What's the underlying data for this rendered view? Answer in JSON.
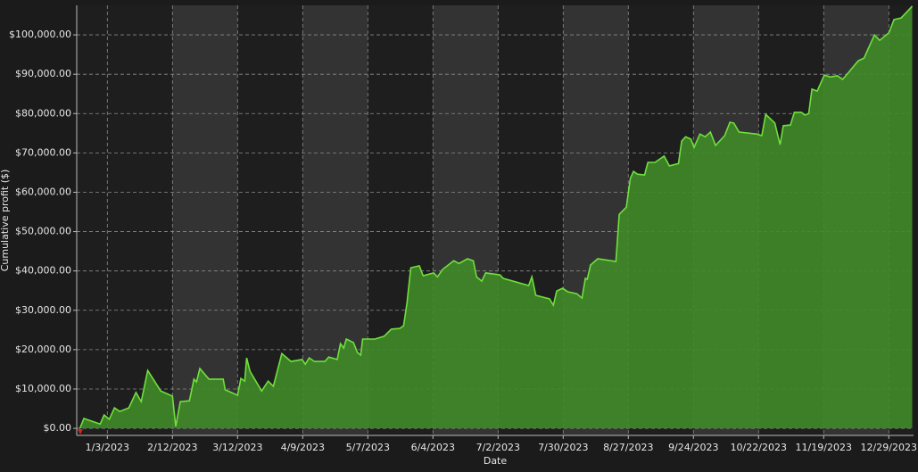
{
  "chart_data": {
    "type": "area",
    "xlabel": "Date",
    "ylabel": "Cumulative profit ($)",
    "x": [
      -0.42,
      -0.36,
      -0.11,
      -0.05,
      0.03,
      0.11,
      0.19,
      0.33,
      0.44,
      0.52,
      0.62,
      0.82,
      1.0,
      1.05,
      1.12,
      1.26,
      1.33,
      1.37,
      1.42,
      1.56,
      1.78,
      1.81,
      2.0,
      2.05,
      2.11,
      2.14,
      2.19,
      2.37,
      2.47,
      2.55,
      2.68,
      2.82,
      2.99,
      3.04,
      3.1,
      3.18,
      3.34,
      3.4,
      3.53,
      3.58,
      3.63,
      3.67,
      3.78,
      3.84,
      3.89,
      3.92,
      4.11,
      4.25,
      4.36,
      4.49,
      4.55,
      4.6,
      4.66,
      4.79,
      4.85,
      5.01,
      5.07,
      5.15,
      5.32,
      5.4,
      5.53,
      5.62,
      5.67,
      5.75,
      5.81,
      6.03,
      6.08,
      6.47,
      6.52,
      6.58,
      6.79,
      6.85,
      6.9,
      6.99,
      7.07,
      7.21,
      7.29,
      7.34,
      7.37,
      7.42,
      7.53,
      7.81,
      7.86,
      7.97,
      8.03,
      8.08,
      8.14,
      8.25,
      8.3,
      8.41,
      8.55,
      8.63,
      8.77,
      8.82,
      8.88,
      8.96,
      9.01,
      9.1,
      9.18,
      9.26,
      9.34,
      9.48,
      9.56,
      9.62,
      9.7,
      9.97,
      10.05,
      10.11,
      10.25,
      10.33,
      10.38,
      10.49,
      10.55,
      10.66,
      10.71,
      10.77,
      10.82,
      10.9,
      11.01,
      11.1,
      11.21,
      11.29,
      11.34,
      11.42,
      11.53,
      11.62,
      11.7,
      11.78,
      11.86,
      12.0,
      12.08,
      12.19,
      12.27,
      12.36
    ],
    "series": [
      {
        "name": "Cumulative profit",
        "color": "#6fe03c",
        "fill": "#3f8a28",
        "values": [
          0,
          2500,
          1100,
          3400,
          2300,
          5200,
          4300,
          5200,
          9100,
          6800,
          14700,
          9500,
          8200,
          500,
          6800,
          7000,
          12500,
          11800,
          15200,
          12500,
          12500,
          9800,
          8400,
          12700,
          12000,
          17900,
          14500,
          9500,
          12000,
          10700,
          19000,
          17000,
          17500,
          16300,
          17900,
          17000,
          17000,
          18100,
          17500,
          21500,
          20400,
          22700,
          21800,
          19300,
          18600,
          22700,
          22700,
          23400,
          25200,
          25400,
          26100,
          31700,
          40800,
          41300,
          38800,
          39500,
          38500,
          40400,
          42600,
          41900,
          43100,
          42600,
          38500,
          37400,
          39500,
          39000,
          38100,
          36300,
          38500,
          33800,
          32900,
          31300,
          34900,
          35600,
          34700,
          34200,
          33100,
          38100,
          37900,
          41500,
          43100,
          42400,
          54400,
          56200,
          63500,
          65300,
          64600,
          64400,
          67600,
          67600,
          69200,
          66700,
          67300,
          73000,
          74100,
          73500,
          71400,
          74800,
          74100,
          75300,
          71900,
          74400,
          77800,
          77600,
          75300,
          74800,
          74400,
          79800,
          77600,
          72100,
          76900,
          77100,
          80300,
          80300,
          79600,
          80000,
          86200,
          85700,
          89800,
          89300,
          89600,
          88700,
          89600,
          91200,
          93400,
          94100,
          97100,
          100000,
          98600,
          100500,
          103900,
          104300,
          105700,
          107300
        ]
      }
    ],
    "xlim": [
      -0.47,
      12.38
    ],
    "ylim": [
      -1800,
      107500
    ],
    "xticks": [
      {
        "value": 0,
        "label": "1/3/2023"
      },
      {
        "value": 1,
        "label": "2/12/2023"
      },
      {
        "value": 2,
        "label": "3/12/2023"
      },
      {
        "value": 3,
        "label": "4/9/2023"
      },
      {
        "value": 4,
        "label": "5/7/2023"
      },
      {
        "value": 5,
        "label": "6/4/2023"
      },
      {
        "value": 6,
        "label": "7/2/2023"
      },
      {
        "value": 7,
        "label": "7/30/2023"
      },
      {
        "value": 8,
        "label": "8/27/2023"
      },
      {
        "value": 9,
        "label": "9/24/2023"
      },
      {
        "value": 10,
        "label": "10/22/2023"
      },
      {
        "value": 11,
        "label": "11/19/2023"
      },
      {
        "value": 12,
        "label": "12/29/2023"
      }
    ],
    "yticks": [
      {
        "value": 0,
        "label": "$0.00"
      },
      {
        "value": 10000,
        "label": "$10,000.00"
      },
      {
        "value": 20000,
        "label": "$20,000.00"
      },
      {
        "value": 30000,
        "label": "$30,000.00"
      },
      {
        "value": 40000,
        "label": "$40,000.00"
      },
      {
        "value": 50000,
        "label": "$50,000.00"
      },
      {
        "value": 60000,
        "label": "$60,000.00"
      },
      {
        "value": 70000,
        "label": "$70,000.00"
      },
      {
        "value": 80000,
        "label": "$80,000.00"
      },
      {
        "value": 90000,
        "label": "$90,000.00"
      },
      {
        "value": 100000,
        "label": "$100,000.00"
      }
    ],
    "grid": true
  }
}
